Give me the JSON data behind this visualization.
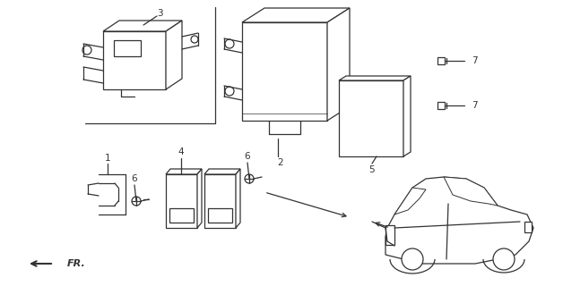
{
  "bg_color": "#ffffff",
  "line_color": "#333333",
  "fig_width": 6.28,
  "fig_height": 3.2,
  "dpi": 100
}
